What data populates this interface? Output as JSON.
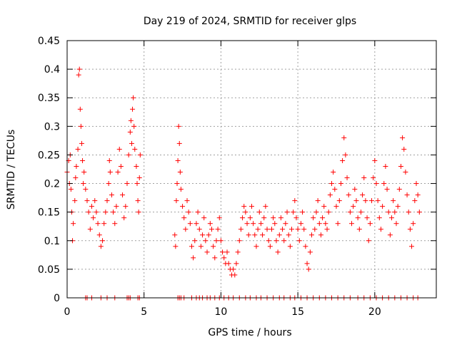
{
  "chart_data": {
    "type": "scatter",
    "title": "Day 219 of 2024, SRMTID for receiver glps",
    "xlabel": "GPS time / hours",
    "ylabel": "SRMTID / TECUs",
    "xlim": [
      0,
      24
    ],
    "ylim": [
      0,
      0.45
    ],
    "xticks": [
      0,
      5,
      10,
      15,
      20
    ],
    "xtick_labels": [
      "0",
      "5",
      "10",
      "15",
      "20"
    ],
    "yticks": [
      0,
      0.05,
      0.1,
      0.15,
      0.2,
      0.25,
      0.3,
      0.35,
      0.4,
      0.45
    ],
    "ytick_labels": [
      "0",
      "0.05",
      "0.1",
      "0.15",
      "0.2",
      "0.25",
      "0.3",
      "0.35",
      "0.4",
      "0.45"
    ],
    "grid": true,
    "marker": "+",
    "marker_color": "#ff0000",
    "series": [
      {
        "name": "SRMTID",
        "points": [
          [
            0.0,
            0.22
          ],
          [
            0.1,
            0.24
          ],
          [
            0.15,
            0.2
          ],
          [
            0.2,
            0.25
          ],
          [
            0.25,
            0.19
          ],
          [
            0.3,
            0.15
          ],
          [
            0.35,
            0.1
          ],
          [
            0.4,
            0.13
          ],
          [
            0.5,
            0.17
          ],
          [
            0.55,
            0.21
          ],
          [
            0.6,
            0.23
          ],
          [
            0.7,
            0.26
          ],
          [
            0.75,
            0.39
          ],
          [
            0.8,
            0.4
          ],
          [
            0.85,
            0.33
          ],
          [
            0.9,
            0.3
          ],
          [
            0.95,
            0.27
          ],
          [
            1.0,
            0.24
          ],
          [
            1.05,
            0.2
          ],
          [
            1.1,
            0.22
          ],
          [
            1.2,
            0.19
          ],
          [
            1.3,
            0.17
          ],
          [
            1.4,
            0.15
          ],
          [
            1.5,
            0.12
          ],
          [
            1.6,
            0.16
          ],
          [
            1.7,
            0.14
          ],
          [
            1.8,
            0.17
          ],
          [
            1.9,
            0.15
          ],
          [
            2.0,
            0.13
          ],
          [
            2.1,
            0.11
          ],
          [
            2.2,
            0.09
          ],
          [
            2.3,
            0.1
          ],
          [
            2.4,
            0.13
          ],
          [
            2.5,
            0.15
          ],
          [
            2.6,
            0.17
          ],
          [
            2.7,
            0.2
          ],
          [
            2.75,
            0.24
          ],
          [
            2.8,
            0.22
          ],
          [
            2.9,
            0.18
          ],
          [
            3.0,
            0.15
          ],
          [
            3.1,
            0.13
          ],
          [
            3.2,
            0.16
          ],
          [
            3.3,
            0.22
          ],
          [
            3.4,
            0.26
          ],
          [
            3.5,
            0.23
          ],
          [
            3.6,
            0.18
          ],
          [
            3.7,
            0.14
          ],
          [
            3.8,
            0.16
          ],
          [
            3.9,
            0.2
          ],
          [
            4.0,
            0.25
          ],
          [
            4.1,
            0.29
          ],
          [
            4.15,
            0.31
          ],
          [
            4.2,
            0.27
          ],
          [
            4.25,
            0.33
          ],
          [
            4.3,
            0.35
          ],
          [
            4.35,
            0.3
          ],
          [
            4.4,
            0.26
          ],
          [
            4.5,
            0.23
          ],
          [
            4.55,
            0.2
          ],
          [
            4.6,
            0.17
          ],
          [
            4.65,
            0.15
          ],
          [
            4.7,
            0.21
          ],
          [
            4.75,
            0.25
          ],
          [
            7.0,
            0.11
          ],
          [
            7.05,
            0.09
          ],
          [
            7.1,
            0.17
          ],
          [
            7.15,
            0.2
          ],
          [
            7.2,
            0.24
          ],
          [
            7.25,
            0.3
          ],
          [
            7.3,
            0.27
          ],
          [
            7.35,
            0.22
          ],
          [
            7.4,
            0.19
          ],
          [
            7.5,
            0.16
          ],
          [
            7.6,
            0.14
          ],
          [
            7.7,
            0.12
          ],
          [
            7.8,
            0.17
          ],
          [
            7.9,
            0.15
          ],
          [
            8.0,
            0.13
          ],
          [
            8.1,
            0.09
          ],
          [
            8.2,
            0.07
          ],
          [
            8.3,
            0.1
          ],
          [
            8.4,
            0.13
          ],
          [
            8.5,
            0.15
          ],
          [
            8.6,
            0.12
          ],
          [
            8.7,
            0.09
          ],
          [
            8.8,
            0.11
          ],
          [
            8.9,
            0.14
          ],
          [
            9.0,
            0.1
          ],
          [
            9.1,
            0.08
          ],
          [
            9.2,
            0.11
          ],
          [
            9.3,
            0.13
          ],
          [
            9.4,
            0.12
          ],
          [
            9.5,
            0.09
          ],
          [
            9.6,
            0.07
          ],
          [
            9.7,
            0.1
          ],
          [
            9.8,
            0.12
          ],
          [
            9.9,
            0.14
          ],
          [
            10.0,
            0.1
          ],
          [
            10.1,
            0.08
          ],
          [
            10.2,
            0.07
          ],
          [
            10.3,
            0.06
          ],
          [
            10.4,
            0.08
          ],
          [
            10.5,
            0.06
          ],
          [
            10.6,
            0.05
          ],
          [
            10.7,
            0.04
          ],
          [
            10.8,
            0.05
          ],
          [
            10.9,
            0.04
          ],
          [
            11.0,
            0.06
          ],
          [
            11.1,
            0.08
          ],
          [
            11.2,
            0.1
          ],
          [
            11.3,
            0.12
          ],
          [
            11.4,
            0.14
          ],
          [
            11.5,
            0.16
          ],
          [
            11.6,
            0.15
          ],
          [
            11.7,
            0.13
          ],
          [
            11.8,
            0.11
          ],
          [
            11.9,
            0.14
          ],
          [
            12.0,
            0.16
          ],
          [
            12.1,
            0.13
          ],
          [
            12.2,
            0.11
          ],
          [
            12.3,
            0.09
          ],
          [
            12.4,
            0.12
          ],
          [
            12.5,
            0.15
          ],
          [
            12.6,
            0.13
          ],
          [
            12.7,
            0.11
          ],
          [
            12.8,
            0.14
          ],
          [
            12.9,
            0.16
          ],
          [
            13.0,
            0.12
          ],
          [
            13.1,
            0.1
          ],
          [
            13.2,
            0.09
          ],
          [
            13.3,
            0.12
          ],
          [
            13.4,
            0.14
          ],
          [
            13.5,
            0.13
          ],
          [
            13.6,
            0.1
          ],
          [
            13.7,
            0.08
          ],
          [
            13.8,
            0.11
          ],
          [
            13.9,
            0.14
          ],
          [
            14.0,
            0.12
          ],
          [
            14.1,
            0.1
          ],
          [
            14.2,
            0.13
          ],
          [
            14.3,
            0.15
          ],
          [
            14.4,
            0.11
          ],
          [
            14.5,
            0.09
          ],
          [
            14.6,
            0.12
          ],
          [
            14.7,
            0.15
          ],
          [
            14.8,
            0.17
          ],
          [
            14.9,
            0.14
          ],
          [
            15.0,
            0.12
          ],
          [
            15.1,
            0.1
          ],
          [
            15.2,
            0.13
          ],
          [
            15.3,
            0.15
          ],
          [
            15.4,
            0.12
          ],
          [
            15.5,
            0.09
          ],
          [
            15.6,
            0.06
          ],
          [
            15.7,
            0.05
          ],
          [
            15.8,
            0.08
          ],
          [
            15.9,
            0.11
          ],
          [
            16.0,
            0.14
          ],
          [
            16.1,
            0.12
          ],
          [
            16.2,
            0.15
          ],
          [
            16.3,
            0.17
          ],
          [
            16.4,
            0.13
          ],
          [
            16.5,
            0.11
          ],
          [
            16.6,
            0.14
          ],
          [
            16.7,
            0.16
          ],
          [
            16.8,
            0.13
          ],
          [
            16.9,
            0.12
          ],
          [
            17.0,
            0.15
          ],
          [
            17.1,
            0.18
          ],
          [
            17.2,
            0.2
          ],
          [
            17.3,
            0.22
          ],
          [
            17.4,
            0.19
          ],
          [
            17.5,
            0.16
          ],
          [
            17.6,
            0.13
          ],
          [
            17.7,
            0.17
          ],
          [
            17.8,
            0.2
          ],
          [
            17.9,
            0.24
          ],
          [
            18.0,
            0.28
          ],
          [
            18.1,
            0.25
          ],
          [
            18.2,
            0.21
          ],
          [
            18.3,
            0.18
          ],
          [
            18.4,
            0.15
          ],
          [
            18.5,
            0.13
          ],
          [
            18.6,
            0.16
          ],
          [
            18.7,
            0.19
          ],
          [
            18.8,
            0.17
          ],
          [
            18.9,
            0.14
          ],
          [
            19.0,
            0.12
          ],
          [
            19.1,
            0.15
          ],
          [
            19.2,
            0.18
          ],
          [
            19.3,
            0.21
          ],
          [
            19.4,
            0.17
          ],
          [
            19.5,
            0.14
          ],
          [
            19.6,
            0.1
          ],
          [
            19.7,
            0.13
          ],
          [
            19.8,
            0.17
          ],
          [
            19.9,
            0.21
          ],
          [
            20.0,
            0.24
          ],
          [
            20.1,
            0.2
          ],
          [
            20.2,
            0.17
          ],
          [
            20.3,
            0.14
          ],
          [
            20.4,
            0.12
          ],
          [
            20.5,
            0.16
          ],
          [
            20.6,
            0.2
          ],
          [
            20.7,
            0.23
          ],
          [
            20.8,
            0.19
          ],
          [
            20.9,
            0.15
          ],
          [
            21.0,
            0.11
          ],
          [
            21.1,
            0.14
          ],
          [
            21.2,
            0.17
          ],
          [
            21.3,
            0.15
          ],
          [
            21.4,
            0.13
          ],
          [
            21.5,
            0.16
          ],
          [
            21.6,
            0.19
          ],
          [
            21.7,
            0.23
          ],
          [
            21.8,
            0.28
          ],
          [
            21.9,
            0.26
          ],
          [
            22.0,
            0.22
          ],
          [
            22.1,
            0.18
          ],
          [
            22.2,
            0.15
          ],
          [
            22.3,
            0.12
          ],
          [
            22.4,
            0.09
          ],
          [
            22.5,
            0.13
          ],
          [
            22.6,
            0.17
          ],
          [
            22.7,
            0.2
          ],
          [
            22.8,
            0.18
          ],
          [
            22.9,
            0.15
          ]
        ],
        "zero_points": [
          1.2,
          1.3,
          1.6,
          2.2,
          2.6,
          3.1,
          3.9,
          4.0,
          4.1,
          4.6,
          4.7,
          7.2,
          7.3,
          7.4,
          7.6,
          8.1,
          8.4,
          8.6,
          8.8,
          9.1,
          9.3,
          9.6,
          9.9,
          10.2,
          10.5,
          10.8,
          11.2,
          11.6,
          11.9,
          12.3,
          12.6,
          13.0,
          13.4,
          13.8,
          14.1,
          14.5,
          14.8,
          15.2,
          15.6,
          16.0,
          16.4,
          16.8,
          17.2,
          17.6,
          18.0,
          18.4,
          18.9,
          19.3,
          19.7,
          20.1,
          20.5,
          20.9,
          21.3,
          21.7,
          22.1,
          22.5,
          22.8
        ]
      }
    ]
  }
}
